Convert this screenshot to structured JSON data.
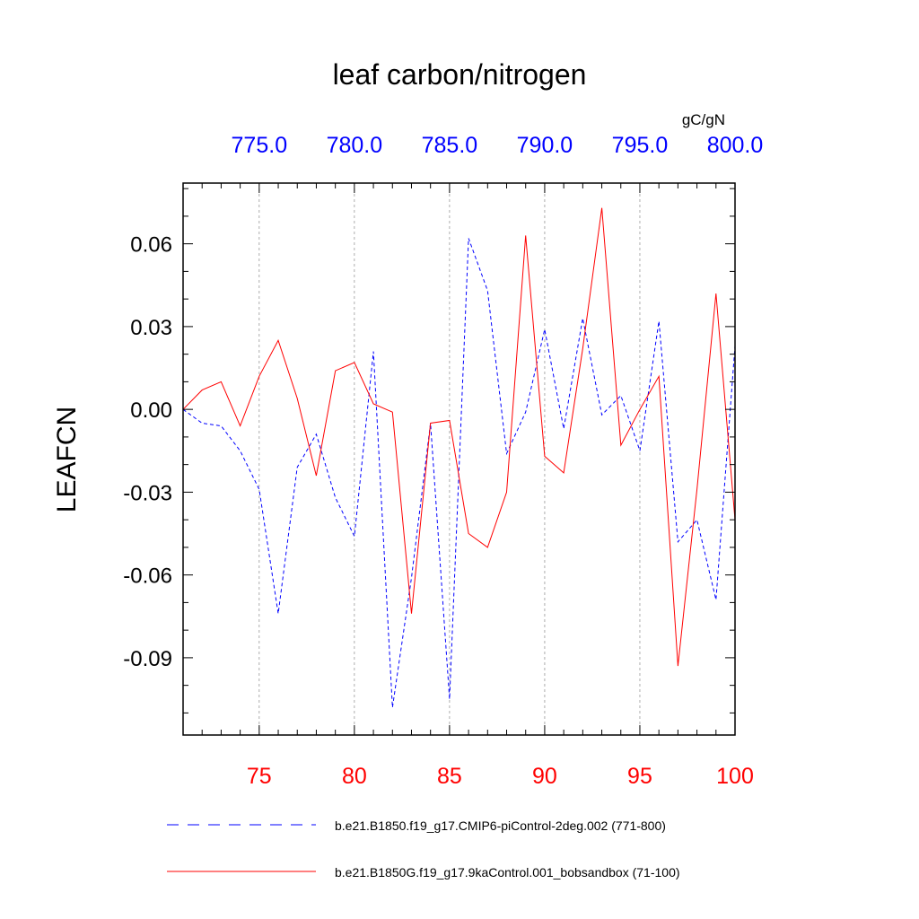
{
  "chart_data": {
    "type": "line",
    "title": "leaf carbon/nitrogen",
    "ylabel": "LEAFCN",
    "units": "gC/gN",
    "ylim": [
      -0.118,
      0.082
    ],
    "yticks": [
      {
        "value": 0.06,
        "label": "0.06"
      },
      {
        "value": 0.03,
        "label": "0.03"
      },
      {
        "value": 0.0,
        "label": "0.00"
      },
      {
        "value": -0.03,
        "label": "-0.03"
      },
      {
        "value": -0.06,
        "label": "-0.06"
      },
      {
        "value": -0.09,
        "label": "-0.09"
      }
    ],
    "bottom_axis": {
      "range": [
        71,
        100
      ],
      "color": "#ff0000",
      "ticks": [
        {
          "value": 75,
          "label": "75"
        },
        {
          "value": 80,
          "label": "80"
        },
        {
          "value": 85,
          "label": "85"
        },
        {
          "value": 90,
          "label": "90"
        },
        {
          "value": 95,
          "label": "95"
        },
        {
          "value": 100,
          "label": "100"
        }
      ]
    },
    "top_axis": {
      "range": [
        771,
        800
      ],
      "color": "#0000ff",
      "ticks": [
        {
          "value": 775,
          "label": "775.0"
        },
        {
          "value": 780,
          "label": "780.0"
        },
        {
          "value": 785,
          "label": "785.0"
        },
        {
          "value": 790,
          "label": "790.0"
        },
        {
          "value": 795,
          "label": "795.0"
        },
        {
          "value": 800,
          "label": "800.0"
        }
      ]
    },
    "gridlines_at_bottom_x": [
      75,
      80,
      85,
      90,
      95
    ],
    "series": [
      {
        "name": "b.e21.B1850.f19_g17.CMIP6-piControl-2deg.002 (771-800)",
        "color": "#0000ff",
        "style": "dashed",
        "axis": "top",
        "x": [
          771,
          772,
          773,
          774,
          775,
          776,
          777,
          778,
          779,
          780,
          781,
          782,
          783,
          784,
          785,
          786,
          787,
          788,
          789,
          790,
          791,
          792,
          793,
          794,
          795,
          796,
          797,
          798,
          799,
          800
        ],
        "values": [
          0.0,
          -0.005,
          -0.006,
          -0.015,
          -0.029,
          -0.074,
          -0.021,
          -0.009,
          -0.032,
          -0.046,
          0.021,
          -0.108,
          -0.061,
          -0.005,
          -0.105,
          0.062,
          0.043,
          -0.016,
          -0.001,
          0.029,
          -0.007,
          0.033,
          -0.002,
          0.005,
          -0.015,
          0.032,
          -0.048,
          -0.04,
          -0.069,
          0.023
        ]
      },
      {
        "name": "b.e21.B1850G.f19_g17.9kaControl.001_bobsandbox (71-100)",
        "color": "#ff0000",
        "style": "solid",
        "axis": "bottom",
        "x": [
          71,
          72,
          73,
          74,
          75,
          76,
          77,
          78,
          79,
          80,
          81,
          82,
          83,
          84,
          85,
          86,
          87,
          88,
          89,
          90,
          91,
          92,
          93,
          94,
          95,
          96,
          97,
          98,
          99,
          100
        ],
        "values": [
          0.0,
          0.007,
          0.01,
          -0.006,
          0.012,
          0.025,
          0.004,
          -0.024,
          0.014,
          0.017,
          0.002,
          -0.001,
          -0.074,
          -0.005,
          -0.004,
          -0.045,
          -0.05,
          -0.03,
          0.063,
          -0.017,
          -0.023,
          0.022,
          0.073,
          -0.013,
          0.0,
          0.012,
          -0.093,
          -0.029,
          0.042,
          -0.04
        ]
      }
    ]
  }
}
